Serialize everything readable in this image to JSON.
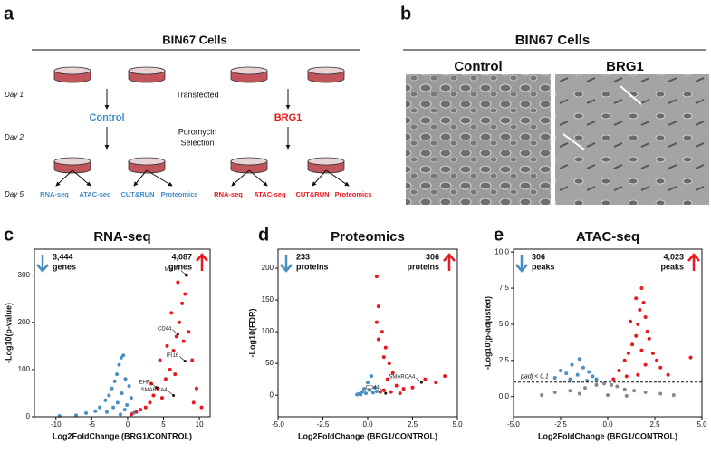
{
  "panel_a": {
    "letter": "a",
    "title": "BIN67 Cells",
    "days": [
      "Day 1",
      "Day 2",
      "Day 5"
    ],
    "step1": "Transfected",
    "step2": [
      "Puromycin",
      "Selection"
    ],
    "control": "Control",
    "brg1": "BRG1",
    "assays": [
      "RNA-seq",
      "ATAC-seq",
      "CUT&RUN",
      "Proteomics"
    ]
  },
  "panel_b": {
    "letter": "b",
    "title": "BIN67 Cells",
    "control": "Control",
    "brg1": "BRG1"
  },
  "chart_data": [
    {
      "type": "scatter",
      "panel": "c",
      "title": "RNA-seq",
      "xlabel": "Log2FoldChange (BRG1/CONTROL)",
      "ylabel": "-Log10(p-value)",
      "xlim": [
        -13,
        11.5
      ],
      "ylim": [
        0,
        355
      ],
      "xticks": [
        -10,
        -5,
        0,
        5,
        10
      ],
      "yticks": [
        0,
        100,
        200,
        300
      ],
      "down": {
        "count": "3,444",
        "unit": "genes"
      },
      "up": {
        "count": "4,087",
        "unit": "genes"
      },
      "series": [
        {
          "color": "#4a8fc1",
          "x": [
            -9.5,
            -7.2,
            -5.8,
            -4.5,
            -3.9,
            -3.1,
            -2.6,
            -2.2,
            -1.8,
            -1.5,
            -1.2,
            -0.9,
            -0.6,
            -0.3,
            0.2,
            0.5,
            -0.8,
            -1.4,
            -2.0,
            -0.4,
            -0.1,
            -2.9,
            -1.0,
            0.8
          ],
          "values": [
            2,
            3,
            8,
            12,
            20,
            35,
            45,
            60,
            75,
            90,
            110,
            125,
            130,
            80,
            65,
            40,
            50,
            30,
            20,
            15,
            25,
            10,
            5,
            8
          ]
        },
        {
          "color": "#e8191e",
          "x": [
            0.5,
            1.2,
            1.8,
            2.5,
            3.1,
            3.6,
            4.2,
            4.8,
            5.3,
            5.9,
            6.4,
            6.8,
            7.2,
            7.6,
            8.0,
            8.5,
            9.0,
            9.6,
            10.3,
            4.5,
            5.5,
            6.1,
            7.0,
            8.2,
            3.3,
            6.6,
            7.8,
            9.2
          ],
          "values": [
            5,
            10,
            15,
            20,
            30,
            45,
            60,
            40,
            80,
            100,
            140,
            170,
            200,
            240,
            260,
            180,
            120,
            60,
            20,
            120,
            150,
            220,
            285,
            300,
            70,
            90,
            160,
            30
          ]
        }
      ],
      "annotations": [
        {
          "text": "MMP7",
          "x": 8.2,
          "y": 300
        },
        {
          "text": "CD44",
          "x": 7.0,
          "y": 175
        },
        {
          "text": "IFI16",
          "x": 8.0,
          "y": 118
        },
        {
          "text": "EHF",
          "x": 4.0,
          "y": 62
        },
        {
          "text": "SMARCA4",
          "x": 6.4,
          "y": 45
        }
      ]
    },
    {
      "type": "scatter",
      "panel": "d",
      "title": "Proteomics",
      "xlabel": "Log2FoldChange (BRG1/CONTROL)",
      "ylabel": "-Log10(FDR)",
      "xlim": [
        -5,
        5
      ],
      "ylim": [
        -34,
        230
      ],
      "xticks": [
        {
          "value": -5,
          "label": "-5.0"
        },
        -2.5,
        {
          "value": 0,
          "label": "0.0"
        },
        2.5,
        {
          "value": 5,
          "label": "5.0"
        }
      ],
      "yticks": [
        0,
        50,
        100,
        150,
        200
      ],
      "down": {
        "count": "233",
        "unit": "proteins"
      },
      "up": {
        "count": "306",
        "unit": "proteins"
      },
      "series": [
        {
          "color": "#4a8fc1",
          "x": [
            -0.5,
            -0.3,
            -0.2,
            -0.1,
            0,
            0.1,
            0.2,
            -0.4,
            0.3,
            0.4,
            -0.6,
            0.5
          ],
          "values": [
            2,
            5,
            10,
            3,
            20,
            8,
            30,
            1,
            4,
            12,
            1,
            6
          ]
        },
        {
          "color": "#e8191e",
          "x": [
            0.5,
            0.6,
            0.8,
            1.0,
            1.2,
            1.4,
            0.9,
            1.1,
            1.6,
            2.0,
            2.5,
            3.2,
            3.8,
            4.3,
            0.7,
            0.9,
            1.3,
            1.8,
            0.5,
            0.6
          ],
          "values": [
            187,
            140,
            100,
            75,
            50,
            35,
            60,
            25,
            15,
            10,
            12,
            25,
            20,
            30,
            5,
            8,
            5,
            3,
            115,
            88
          ]
        }
      ],
      "annotations": [
        {
          "text": "SMARCA4",
          "x": 3.0,
          "y": 20
        },
        {
          "text": "CD44",
          "x": 1.0,
          "y": 3
        }
      ]
    },
    {
      "type": "scatter",
      "panel": "e",
      "title": "ATAC-seq",
      "xlabel": "Log2FoldChange (BRG1/CONTROL)",
      "ylabel": "-Log10(p-adjusted)",
      "xlim": [
        -5,
        5
      ],
      "ylim": [
        -1.4,
        10.2
      ],
      "xticks": [
        {
          "value": -5,
          "label": "-5.0"
        },
        -2.5,
        {
          "value": 0,
          "label": "0.0"
        },
        2.5,
        {
          "value": 5,
          "label": "5.0"
        }
      ],
      "yticks": [
        {
          "value": 0,
          "label": "0.0"
        },
        2.5,
        {
          "value": 5,
          "label": "5.0"
        },
        7.5,
        {
          "value": 10,
          "label": "10.0"
        }
      ],
      "down": {
        "count": "306",
        "unit": "peaks"
      },
      "up": {
        "count": "4,023",
        "unit": "peaks"
      },
      "threshold": {
        "label": "padj < 0.1",
        "value": 1
      },
      "series": [
        {
          "color": "#4a8fc1",
          "x": [
            -2.8,
            -2.5,
            -2.2,
            -1.9,
            -1.6,
            -1.3,
            -1.0,
            -0.8,
            -0.6,
            -1.5,
            -2.0,
            -1.1
          ],
          "values": [
            1.3,
            1.8,
            1.6,
            2.2,
            1.5,
            2.0,
            1.7,
            1.4,
            1.2,
            2.6,
            1.2,
            1.1
          ]
        },
        {
          "color": "#e8191e",
          "x": [
            0.3,
            0.6,
            0.9,
            1.1,
            1.3,
            1.5,
            1.6,
            1.7,
            1.8,
            1.9,
            2.0,
            2.1,
            2.2,
            2.4,
            2.6,
            2.8,
            3.2,
            4.4,
            1.2,
            1.5,
            1.8,
            2.0,
            1.6,
            1.0
          ],
          "values": [
            1.2,
            1.8,
            2.5,
            3.0,
            3.6,
            4.2,
            5.0,
            6.0,
            7.5,
            6.5,
            5.5,
            4.5,
            4.0,
            3.0,
            2.5,
            2.0,
            1.5,
            2.7,
            5.2,
            6.8,
            3.2,
            2.2,
            1.5,
            1.4
          ]
        },
        {
          "color": "#888888",
          "x": [
            -3.5,
            -2.8,
            -2.0,
            -1.2,
            -0.6,
            -0.2,
            0,
            0.2,
            0.5,
            0.9,
            1.4,
            2.0,
            2.8,
            3.5,
            -1.5,
            1.0
          ],
          "values": [
            0.1,
            0.3,
            0.4,
            0.6,
            0.8,
            0.9,
            0.1,
            0.8,
            0.7,
            0.5,
            0.4,
            0.3,
            0.2,
            0.1,
            0.2,
            0.05
          ]
        }
      ]
    }
  ]
}
